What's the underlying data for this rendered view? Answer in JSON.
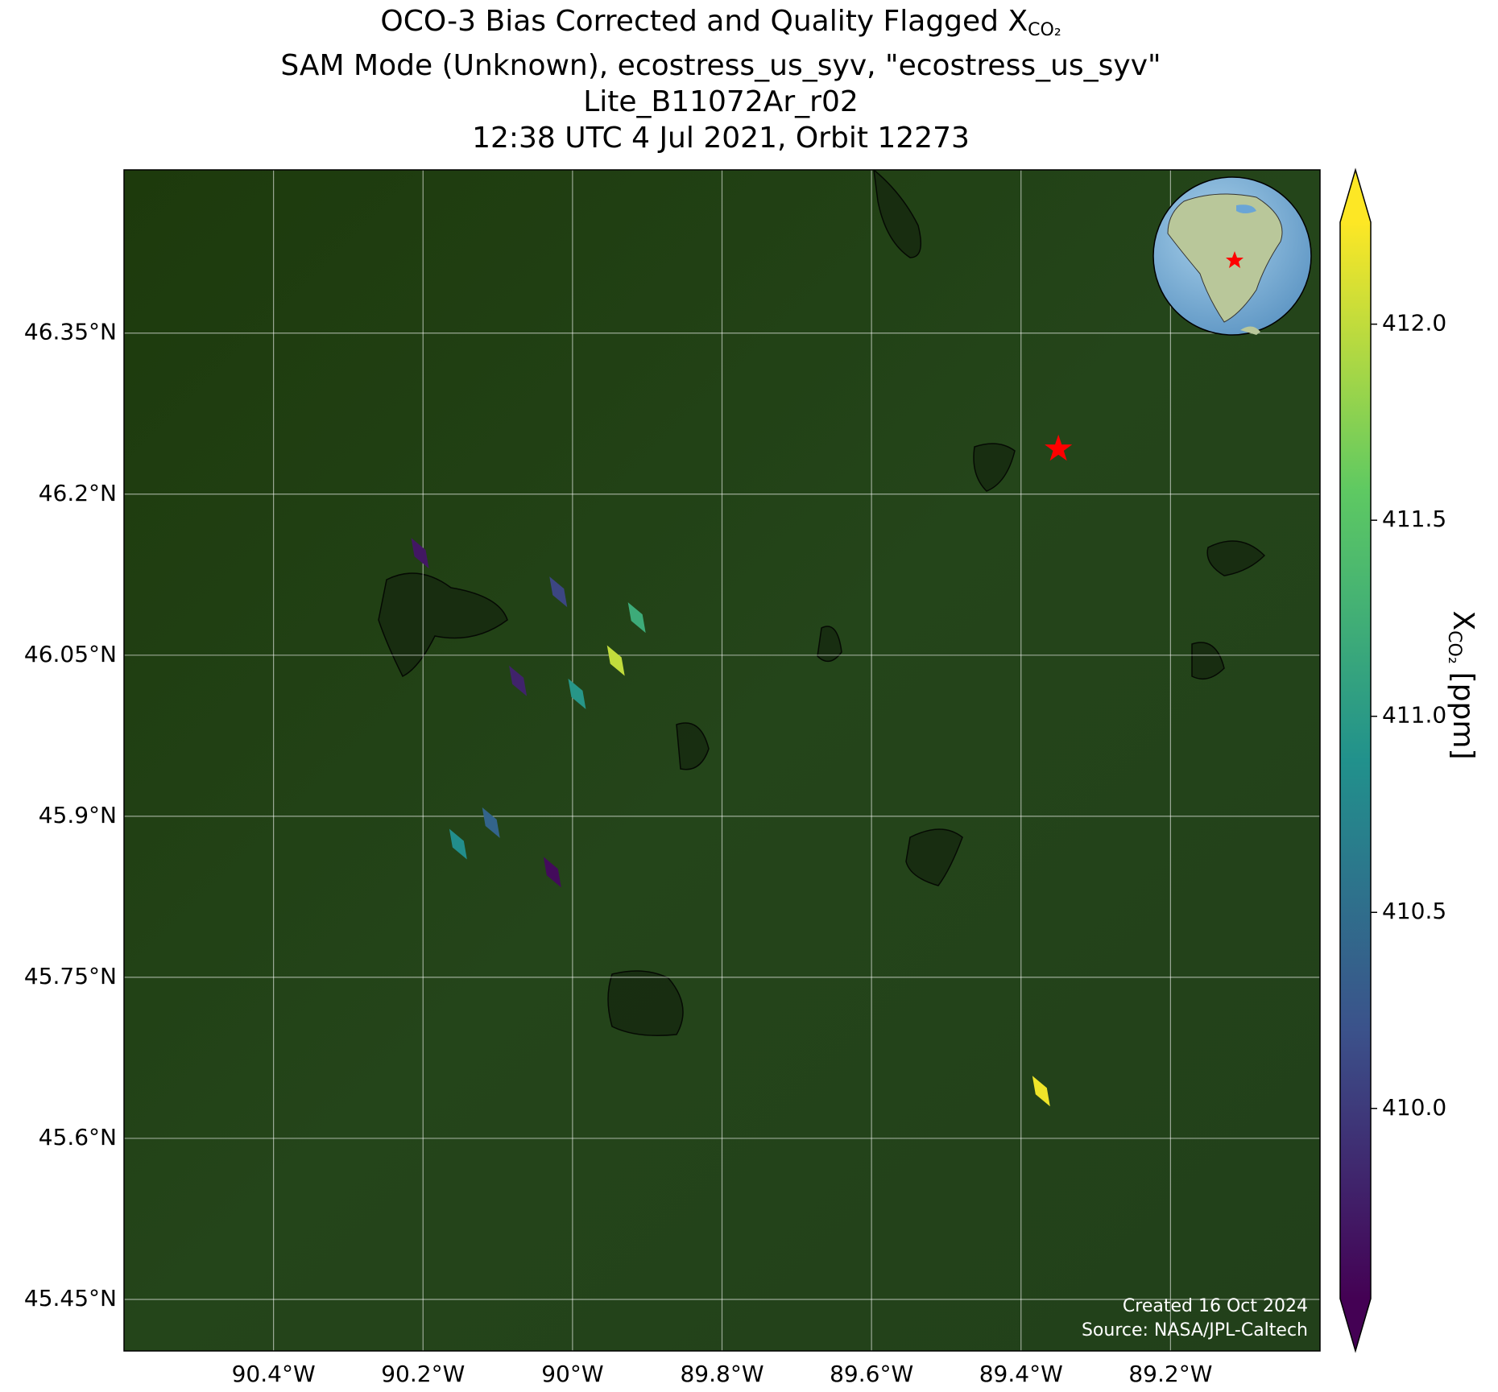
{
  "chart_data": {
    "type": "scatter",
    "title": "OCO-3 Bias Corrected and Quality Flagged X",
    "title_subscript": "CO₂",
    "subtitle_lines": [
      "SAM Mode (Unknown), ecostress_us_syv, \"ecostress_us_syv\"",
      "Lite_B11072Ar_r02",
      "12:38 UTC 4 Jul 2021, Orbit 12273"
    ],
    "x": [
      -90.204,
      -90.019,
      -89.914,
      -89.942,
      -90.073,
      -89.994,
      -90.109,
      -90.153,
      -90.027,
      -89.373
    ],
    "y": [
      46.145,
      46.109,
      46.085,
      46.045,
      46.026,
      46.014,
      45.894,
      45.874,
      45.848,
      45.644
    ],
    "values": [
      409.7,
      410.1,
      411.2,
      412.0,
      409.8,
      410.95,
      410.4,
      410.85,
      409.6,
      412.2
    ],
    "colormap": "viridis",
    "site": {
      "x": -89.35,
      "y": 46.242,
      "color": "#ff0000"
    },
    "xlim": [
      -90.6,
      -89.0
    ],
    "ylim": [
      45.402,
      46.502
    ],
    "xticks": [
      {
        "value": -90.4,
        "label": "90.4°W"
      },
      {
        "value": -90.2,
        "label": "90.2°W"
      },
      {
        "value": -90.0,
        "label": "90°W"
      },
      {
        "value": -89.8,
        "label": "89.8°W"
      },
      {
        "value": -89.6,
        "label": "89.6°W"
      },
      {
        "value": -89.4,
        "label": "89.4°W"
      },
      {
        "value": -89.2,
        "label": "89.2°W"
      }
    ],
    "yticks": [
      {
        "value": 46.35,
        "label": "46.35°N"
      },
      {
        "value": 46.2,
        "label": "46.2°N"
      },
      {
        "value": 46.05,
        "label": "46.05°N"
      },
      {
        "value": 45.9,
        "label": "45.9°N"
      },
      {
        "value": 45.75,
        "label": "45.75°N"
      },
      {
        "value": 45.6,
        "label": "45.6°N"
      },
      {
        "value": 45.45,
        "label": "45.45°N"
      }
    ],
    "grid": true,
    "clim": [
      409.515,
      412.26
    ],
    "cticks": [
      {
        "value": 410,
        "label": "410.0"
      },
      410.5,
      {
        "value": 411,
        "label": "411.0"
      },
      411.5,
      {
        "value": 412,
        "label": "412.0"
      }
    ],
    "colorbar_label": {
      "symbol": "X",
      "subscript": "CO₂",
      "unit": "[ppm]"
    },
    "footer": [
      "Created 16 Oct 2024",
      "Source: NASA/JPL-Caltech"
    ]
  }
}
